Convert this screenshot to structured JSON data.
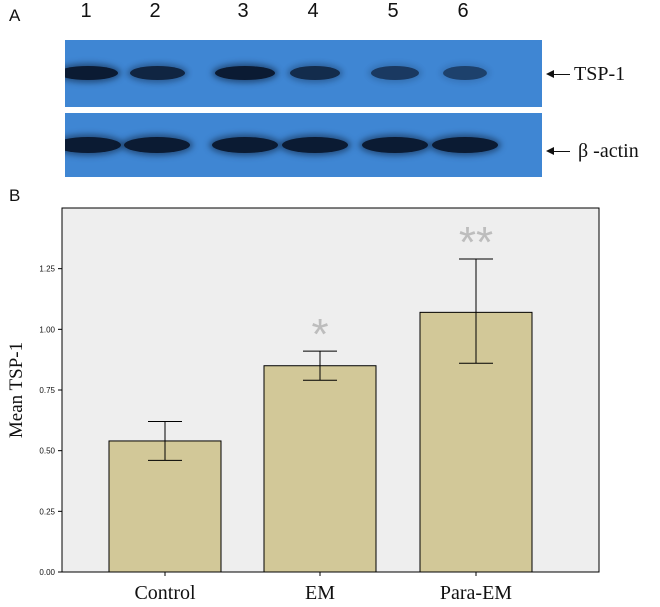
{
  "panel_a": {
    "letter": "A",
    "lanes": [
      "1",
      "2",
      "3",
      "4",
      "5",
      "6"
    ],
    "blots": [
      {
        "label": "TSP-1",
        "band_intensity": [
          1.0,
          0.85,
          1.0,
          0.75,
          0.55,
          0.45
        ]
      },
      {
        "label": "β -actin",
        "band_intensity": [
          1.0,
          1.0,
          1.0,
          1.0,
          1.0,
          1.0
        ]
      }
    ],
    "colors": {
      "blot_background": "#3f86d3",
      "band": "#0b1b33"
    }
  },
  "panel_b": {
    "letter": "B"
  },
  "chart_data": {
    "type": "bar",
    "categories": [
      "Control",
      "EM",
      "Para-EM"
    ],
    "values": [
      0.54,
      0.85,
      1.07
    ],
    "error_low": [
      0.46,
      0.79,
      0.86
    ],
    "error_high": [
      0.62,
      0.91,
      1.29
    ],
    "significance": [
      "",
      "*",
      "**"
    ],
    "title": "",
    "xlabel": "",
    "ylabel": "Mean TSP-1",
    "ylim": [
      0,
      1.5
    ],
    "yticks": [
      "0.00",
      "0.25",
      "0.50",
      "0.75",
      "1.00",
      "1.25"
    ],
    "grid": false,
    "colors": {
      "bar": "#d2c898",
      "plot_background": "#eeeeee",
      "star": "#bdbdbd"
    }
  }
}
